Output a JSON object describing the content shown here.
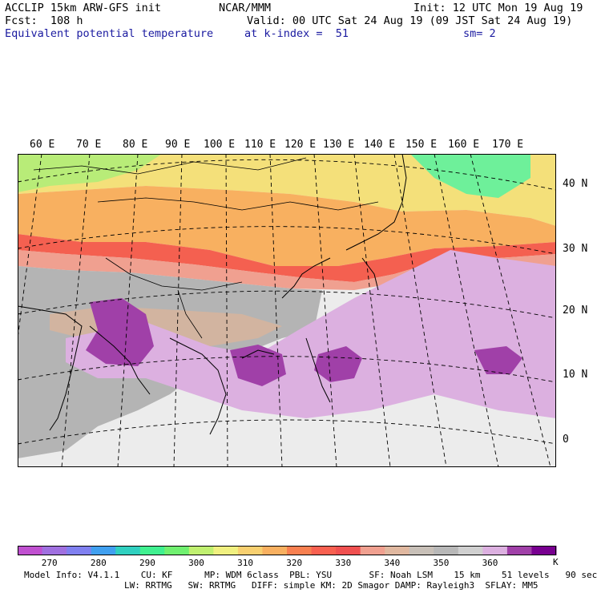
{
  "header": {
    "model": "ACCLIP 15km ARW-GFS init",
    "center": "NCAR/MMM",
    "init": "Init: 12 UTC Mon 19 Aug 19",
    "fcst": "Fcst:  108 h",
    "valid": "Valid: 00 UTC Sat 24 Aug 19 (09 JST Sat 24 Aug 19)",
    "field": "Equivalent potential temperature",
    "level": "at k-index =  51",
    "smoothing": "sm= 2"
  },
  "map": {
    "longitude_labels": [
      "60 E",
      "70 E",
      "80 E",
      "90 E",
      "100 E",
      "110 E",
      "120 E",
      "130 E",
      "140 E",
      "150 E",
      "160 E",
      "170 E"
    ],
    "latitude_labels": [
      "40 N",
      "30 N",
      "20 N",
      "10 N",
      "0"
    ],
    "colors": {
      "land_border": "#000000",
      "grid": "#000000"
    }
  },
  "colorbar": {
    "unit": "K",
    "labels": [
      "270",
      "280",
      "290",
      "300",
      "310",
      "320",
      "330",
      "340",
      "350",
      "360"
    ],
    "colors": [
      "#c050d0",
      "#a070e0",
      "#8080f0",
      "#40a0f0",
      "#30d0c0",
      "#40f090",
      "#70f070",
      "#c0f070",
      "#f0f080",
      "#f8d070",
      "#f8b060",
      "#f88050",
      "#f86050",
      "#f05050",
      "#f0a090",
      "#e0b8a0",
      "#c8c0b8",
      "#b8b8b8",
      "#d0d0d0",
      "#dcb0e0",
      "#a040a8",
      "#780090"
    ]
  },
  "footer": {
    "line1": "Model Info: V4.1.1    CU: KF      MP: WDM 6class  PBL: YSU       SF: Noah LSM    15 km    51 levels   90 sec",
    "line2": "LW: RRTMG   SW: RRTMG   DIFF: simple KM: 2D Smagor DAMP: Rayleigh3  SFLAY: MM5"
  }
}
